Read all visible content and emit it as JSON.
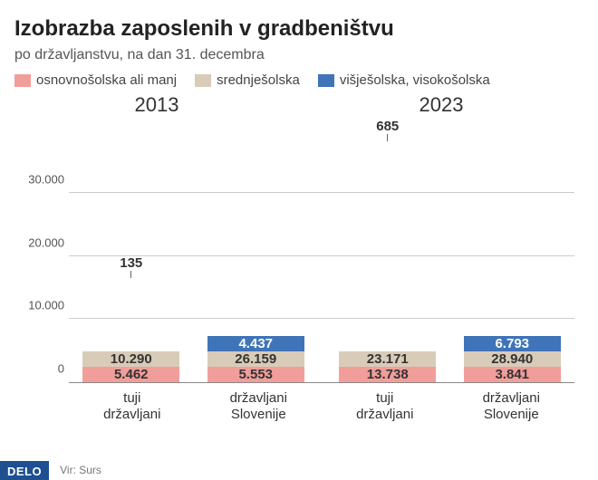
{
  "title": "Izobrazba zaposlenih v gradbeništvu",
  "subtitle": "po državljanstvu, na dan 31. decembra",
  "legend": [
    {
      "label": "osnovnošolska ali manj",
      "color": "#f19e9a"
    },
    {
      "label": "srednješolska",
      "color": "#d8ccb9"
    },
    {
      "label": "višješolska, visokošolska",
      "color": "#3f74b9"
    }
  ],
  "years": [
    "2013",
    "2023"
  ],
  "chart": {
    "type": "stacked-bar",
    "ymax": 40000,
    "yticks": [
      0,
      10000,
      20000,
      30000
    ],
    "ytick_labels": [
      "0",
      "10.000",
      "20.000",
      "30.000"
    ],
    "background_color": "#ffffff",
    "grid_color": "#cccccc",
    "axis_color": "#888888",
    "bar_width_pct": 78,
    "label_fontsize": 15,
    "bars": [
      {
        "group": "2013",
        "xlabel_line1": "tuji",
        "xlabel_line2": "državljani",
        "segments": [
          {
            "key": "osnovno",
            "value": 5462,
            "label": "5.462",
            "color": "#f19e9a"
          },
          {
            "key": "srednje",
            "value": 10290,
            "label": "10.290",
            "color": "#d8ccb9"
          },
          {
            "key": "visje",
            "value": 135,
            "label": "135",
            "color": "#3f74b9",
            "callout": true
          }
        ]
      },
      {
        "group": "2013",
        "xlabel_line1": "državljani",
        "xlabel_line2": "Slovenije",
        "segments": [
          {
            "key": "osnovno",
            "value": 5553,
            "label": "5.553",
            "color": "#f19e9a"
          },
          {
            "key": "srednje",
            "value": 26159,
            "label": "26.159",
            "color": "#d8ccb9"
          },
          {
            "key": "visje",
            "value": 4437,
            "label": "4.437",
            "color": "#3f74b9"
          }
        ]
      },
      {
        "group": "2023",
        "xlabel_line1": "tuji",
        "xlabel_line2": "državljani",
        "segments": [
          {
            "key": "osnovno",
            "value": 13738,
            "label": "13.738",
            "color": "#f19e9a"
          },
          {
            "key": "srednje",
            "value": 23171,
            "label": "23.171",
            "color": "#d8ccb9"
          },
          {
            "key": "visje",
            "value": 685,
            "label": "685",
            "color": "#3f74b9",
            "callout": true
          }
        ]
      },
      {
        "group": "2023",
        "xlabel_line1": "državljani",
        "xlabel_line2": "Slovenije",
        "segments": [
          {
            "key": "osnovno",
            "value": 3841,
            "label": "3.841",
            "color": "#f19e9a"
          },
          {
            "key": "srednje",
            "value": 28940,
            "label": "28.940",
            "color": "#d8ccb9"
          },
          {
            "key": "visje",
            "value": 6793,
            "label": "6.793",
            "color": "#3f74b9"
          }
        ]
      }
    ]
  },
  "brand": "DELO",
  "source": "Vir: Surs"
}
